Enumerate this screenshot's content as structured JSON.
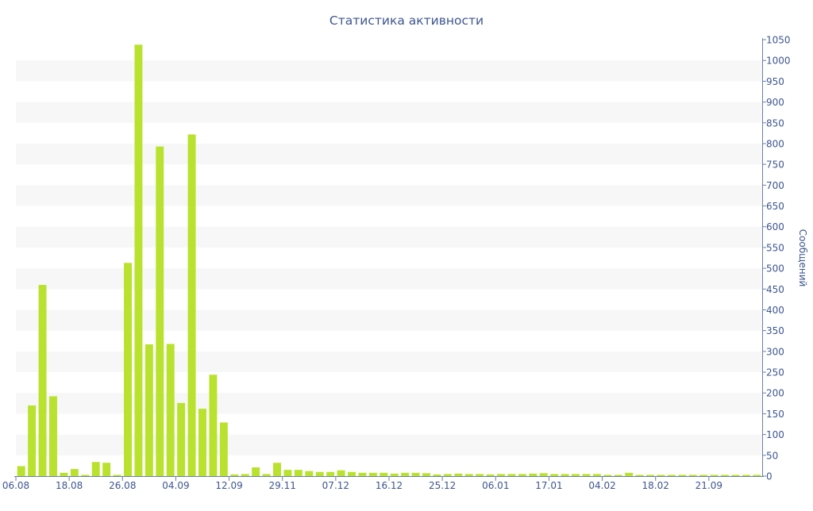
{
  "chart_data": {
    "type": "bar",
    "title": "Статистика активности",
    "xlabel": "",
    "ylabel": "Сообщений",
    "ylim": [
      0,
      1050
    ],
    "y_ticks": [
      0,
      50,
      100,
      150,
      200,
      250,
      300,
      350,
      400,
      450,
      500,
      550,
      600,
      650,
      700,
      750,
      800,
      850,
      900,
      950,
      1000,
      1050
    ],
    "y_axis_side": "right",
    "grid": "alternating horizontal bands",
    "legend": "none",
    "bar_color": "#b9e22f",
    "band_color": "#f7f7f7",
    "axis_color": "#6b7fa8",
    "text_color": "#3d5690",
    "x_tick_labels": [
      {
        "label": "06.08",
        "index": 0
      },
      {
        "label": "18.08",
        "index": 5
      },
      {
        "label": "26.08",
        "index": 10
      },
      {
        "label": "04.09",
        "index": 15
      },
      {
        "label": "12.09",
        "index": 20
      },
      {
        "label": "29.11",
        "index": 25
      },
      {
        "label": "07.12",
        "index": 30
      },
      {
        "label": "16.12",
        "index": 35
      },
      {
        "label": "25.12",
        "index": 40
      },
      {
        "label": "06.01",
        "index": 45
      },
      {
        "label": "17.01",
        "index": 50
      },
      {
        "label": "04.02",
        "index": 55
      },
      {
        "label": "18.02",
        "index": 60
      },
      {
        "label": "21.09",
        "index": 65
      }
    ],
    "values": [
      24,
      170,
      460,
      192,
      8,
      17,
      3,
      34,
      32,
      3,
      513,
      1038,
      317,
      793,
      318,
      176,
      822,
      162,
      244,
      129,
      4,
      5,
      21,
      5,
      32,
      15,
      15,
      12,
      10,
      10,
      14,
      10,
      8,
      8,
      8,
      6,
      8,
      8,
      7,
      4,
      5,
      6,
      5,
      5,
      4,
      5,
      5,
      5,
      6,
      7,
      5,
      5,
      5,
      5,
      5,
      3,
      3,
      8,
      3,
      3,
      3,
      3,
      3,
      3,
      3,
      3,
      3,
      3,
      3,
      3
    ]
  }
}
